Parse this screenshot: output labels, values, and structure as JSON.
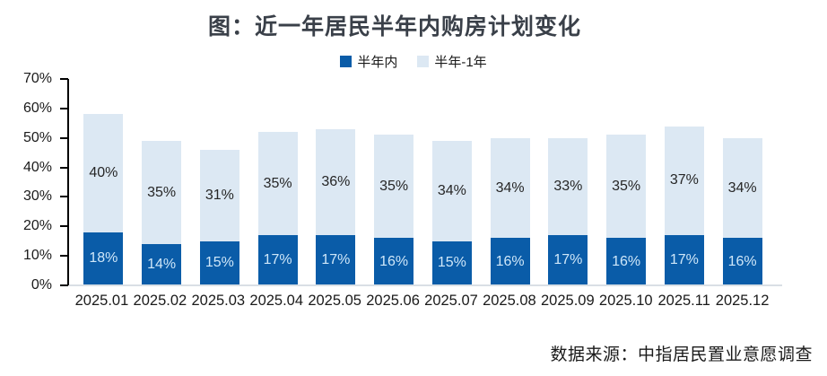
{
  "title": "图：近一年居民半年内购房计划变化",
  "source": "数据来源：中指居民置业意愿调查",
  "colors": {
    "dark_blue": "#0a5ca8",
    "light_blue": "#dce8f3",
    "title_text": "#3a4049",
    "axis_line": "#000000",
    "baseline": "#d9dfe5"
  },
  "chart_data": {
    "type": "bar",
    "stacked": true,
    "title": "图：近一年居民半年内购房计划变化",
    "xlabel": "",
    "ylabel": "",
    "ylim": [
      0,
      70
    ],
    "yticks": [
      "70%",
      "60%",
      "50%",
      "40%",
      "30%",
      "20%",
      "10%",
      "0%"
    ],
    "grid": false,
    "legend_position": "top",
    "categories": [
      "2025.01",
      "2025.02",
      "2025.03",
      "2025.04",
      "2025.05",
      "2025.06",
      "2025.07",
      "2025.08",
      "2025.09",
      "2025.10",
      "2025.11",
      "2025.12"
    ],
    "series": [
      {
        "name": "半年内",
        "color": "#0a5ca8",
        "label_color": "#cfe7f9",
        "values": [
          18,
          14,
          15,
          17,
          17,
          16,
          15,
          16,
          17,
          16,
          17,
          16
        ]
      },
      {
        "name": "半年-1年",
        "color": "#dce8f3",
        "label_color": "#262626",
        "values": [
          40,
          35,
          31,
          35,
          36,
          35,
          34,
          34,
          33,
          35,
          37,
          34
        ]
      }
    ]
  }
}
